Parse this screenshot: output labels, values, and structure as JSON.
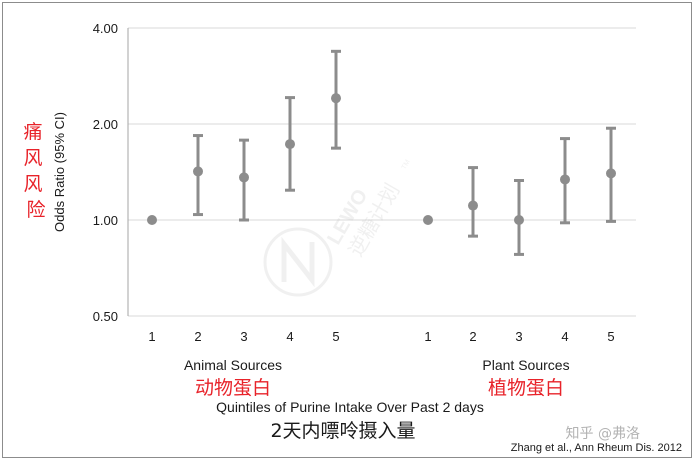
{
  "chart_data": {
    "type": "scatter",
    "ylabel": "Odds Ratio (95% CI)",
    "ylabel_cn": "痛风风险",
    "xlabel": "Quintiles of Purine Intake Over Past 2 days",
    "xlabel_cn": "2天内嘌呤摄入量",
    "yscale": "log",
    "ylim": [
      0.5,
      4.0
    ],
    "yticks": [
      "4.00",
      "2.00",
      "1.00",
      "0.50"
    ],
    "ytick_values": [
      4.0,
      2.0,
      1.0,
      0.5
    ],
    "reference_line": 1.0,
    "grid": "horizontal",
    "groups": [
      {
        "name": "Animal Sources",
        "name_cn": "动物蛋白",
        "categories": [
          "1",
          "2",
          "3",
          "4",
          "5"
        ],
        "values": [
          1.0,
          1.42,
          1.36,
          1.73,
          2.41
        ],
        "lower": [
          1.0,
          1.04,
          1.0,
          1.24,
          1.68
        ],
        "upper": [
          1.0,
          1.84,
          1.78,
          2.42,
          3.38
        ]
      },
      {
        "name": "Plant Sources",
        "name_cn": "植物蛋白",
        "categories": [
          "1",
          "2",
          "3",
          "4",
          "5"
        ],
        "values": [
          1.0,
          1.11,
          1.0,
          1.34,
          1.4
        ],
        "lower": [
          1.0,
          0.89,
          0.78,
          0.98,
          0.99
        ],
        "upper": [
          1.0,
          1.46,
          1.33,
          1.8,
          1.94
        ]
      }
    ]
  },
  "citation": "Zhang et al., Ann Rheum Dis. 2012",
  "watermark": {
    "brand": "LEWO",
    "tm": "TM",
    "text_cn": "逆糖计划"
  },
  "attribution": "知乎 @弗洛",
  "colors": {
    "marker": "#8c8c8c",
    "grid": "#d9d9d9",
    "axis": "#a6a6a6",
    "red_label": "#e8232a",
    "text": "#1a1a1a"
  }
}
